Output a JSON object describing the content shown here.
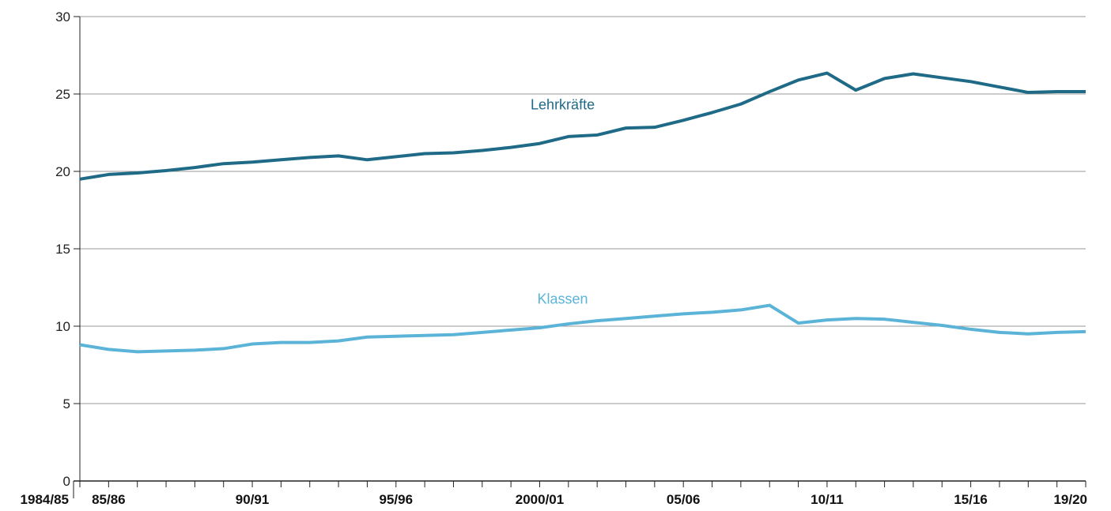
{
  "colors": {
    "lehrkraefte": "#1f6a87",
    "klassen": "#5bb4d8",
    "grid": "#9a9a9a",
    "axis": "#222222"
  },
  "chart_data": {
    "type": "line",
    "x": [
      "1984/85",
      "85/86",
      "86/87",
      "87/88",
      "88/89",
      "89/90",
      "90/91",
      "91/92",
      "92/93",
      "93/94",
      "94/95",
      "95/96",
      "96/97",
      "97/98",
      "98/99",
      "99/00",
      "2000/01",
      "01/02",
      "02/03",
      "03/04",
      "04/05",
      "05/06",
      "06/07",
      "07/08",
      "08/09",
      "09/10",
      "10/11",
      "11/12",
      "12/13",
      "13/14",
      "14/15",
      "15/16",
      "16/17",
      "17/18",
      "18/19",
      "19/20"
    ],
    "x_tick_labels": [
      {
        "index": 0,
        "label": "1984/85"
      },
      {
        "index": 1,
        "label": "85/86"
      },
      {
        "index": 6,
        "label": "90/91"
      },
      {
        "index": 11,
        "label": "95/96"
      },
      {
        "index": 16,
        "label": "2000/01"
      },
      {
        "index": 21,
        "label": "05/06"
      },
      {
        "index": 26,
        "label": "10/11"
      },
      {
        "index": 31,
        "label": "15/16"
      },
      {
        "index": 35,
        "label": "19/20"
      }
    ],
    "yticks": [
      "0",
      "5",
      "10",
      "15",
      "20",
      "25",
      "30"
    ],
    "ylim": [
      0,
      30
    ],
    "grid": true,
    "series": [
      {
        "name": "Lehrkräfte",
        "color": "#1f6a87",
        "label_at_index": 16.8,
        "label_at_value": 24.0,
        "values": [
          19.5,
          19.8,
          19.9,
          20.05,
          20.25,
          20.5,
          20.6,
          20.75,
          20.9,
          21.0,
          20.75,
          20.95,
          21.15,
          21.2,
          21.35,
          21.55,
          21.8,
          22.25,
          22.35,
          22.8,
          22.85,
          23.3,
          23.8,
          24.35,
          25.15,
          25.9,
          26.35,
          25.25,
          26.0,
          26.3,
          26.05,
          25.8,
          25.45,
          25.1,
          25.15,
          25.15
        ]
      },
      {
        "name": "Klassen",
        "color": "#5bb4d8",
        "label_at_index": 16.8,
        "label_at_value": 11.45,
        "values": [
          8.8,
          8.5,
          8.35,
          8.4,
          8.45,
          8.55,
          8.85,
          8.95,
          8.95,
          9.05,
          9.3,
          9.35,
          9.4,
          9.45,
          9.6,
          9.75,
          9.9,
          10.15,
          10.35,
          10.5,
          10.65,
          10.8,
          10.9,
          11.05,
          11.35,
          10.2,
          10.4,
          10.5,
          10.45,
          10.25,
          10.05,
          9.8,
          9.6,
          9.5,
          9.6,
          9.65
        ]
      }
    ]
  }
}
